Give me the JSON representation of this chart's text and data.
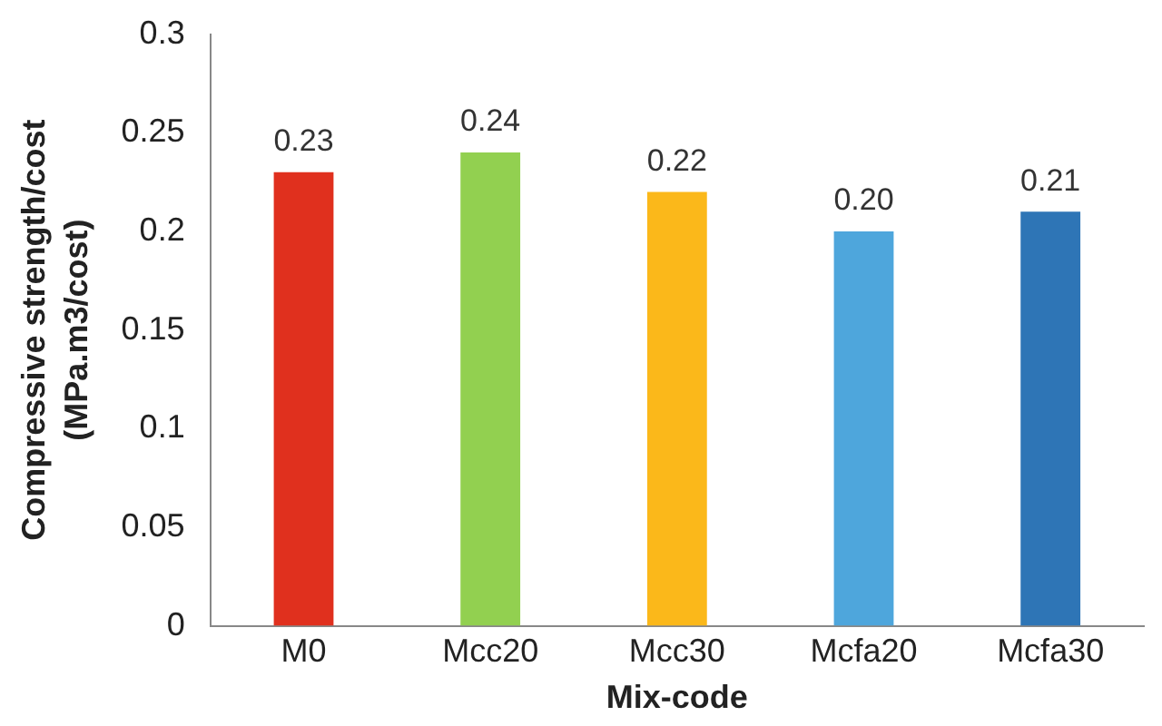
{
  "chart_data": {
    "type": "bar",
    "xlabel": "Mix-code",
    "ylabel": "Compressive strength/cost\n(MPa.m3/cost)",
    "categories": [
      "M0",
      "Mcc20",
      "Mcc30",
      "Mcfa20",
      "Mcfa30"
    ],
    "values": [
      0.23,
      0.24,
      0.22,
      0.2,
      0.21
    ],
    "value_labels": [
      "0.23",
      "0.24",
      "0.22",
      "0.20",
      "0.21"
    ],
    "colors": [
      "#e0301e",
      "#92d050",
      "#fbb81a",
      "#4ea6dc",
      "#2e75b6"
    ],
    "ylim": [
      0,
      0.3
    ],
    "yticks": [
      0,
      0.05,
      0.1,
      0.15,
      0.2,
      0.25,
      0.3
    ],
    "grid": false,
    "legend": false
  }
}
